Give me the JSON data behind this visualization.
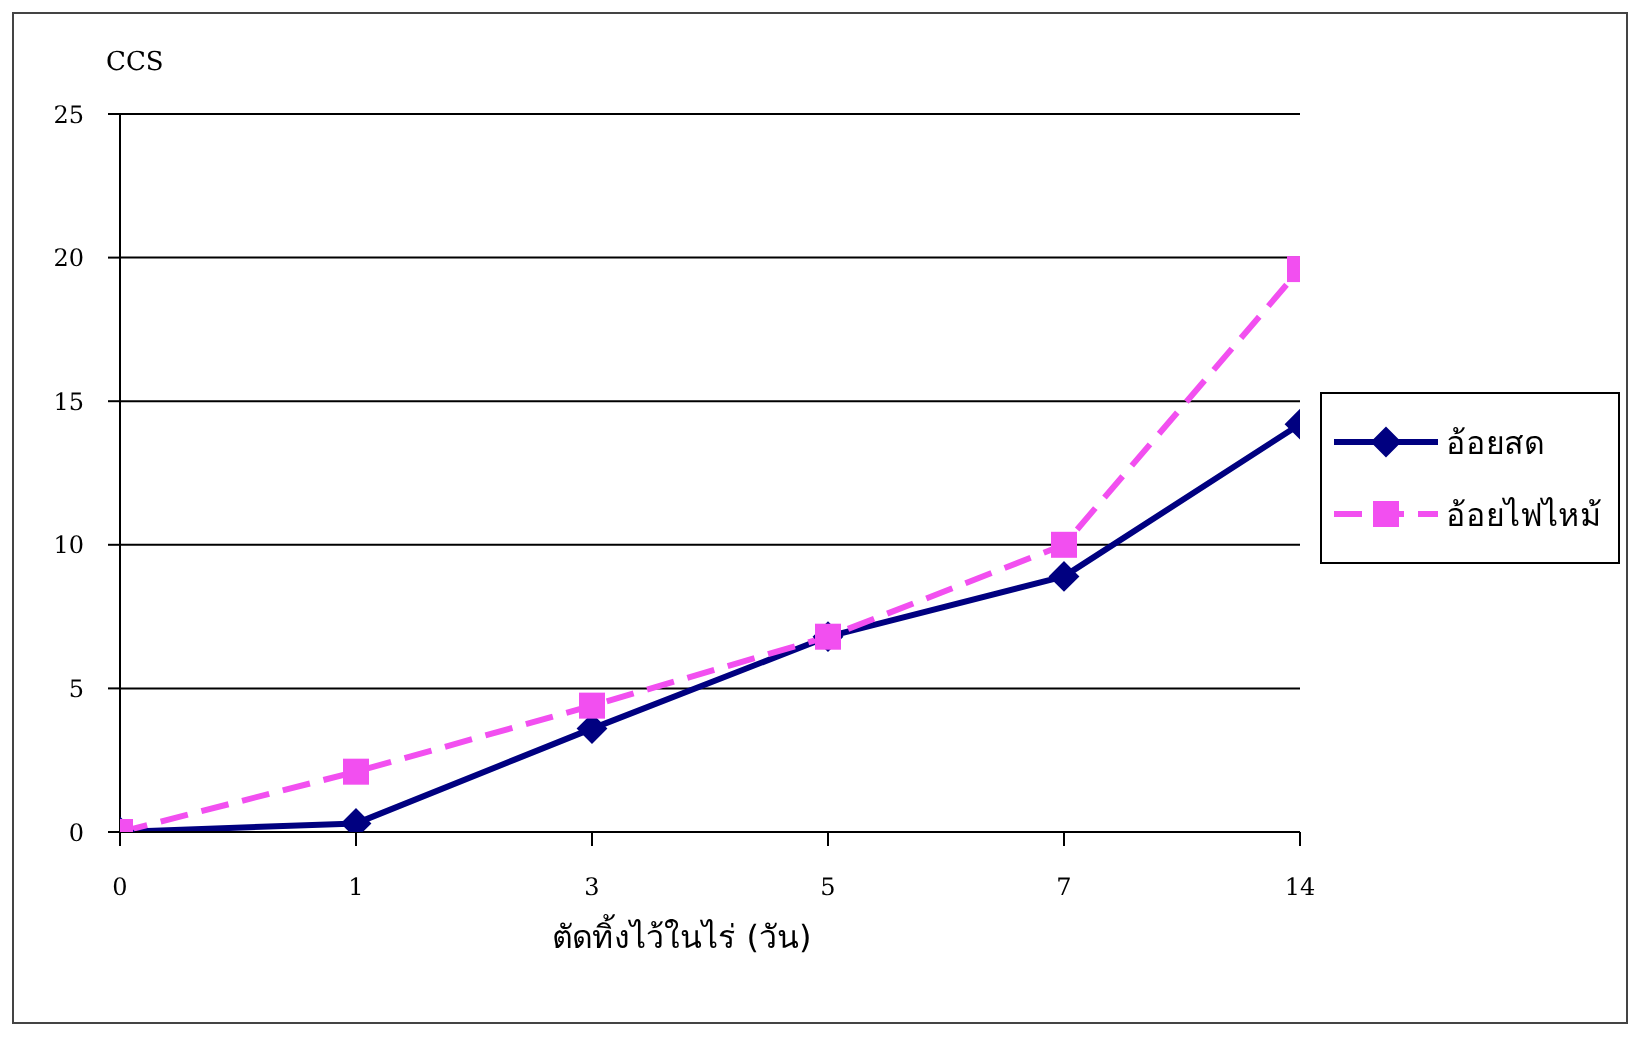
{
  "chart_data": {
    "type": "line",
    "xlabel": "ตัดทิ้งไว้ในไร่ (วัน)",
    "ylabel": "CCS",
    "categories": [
      "0",
      "1",
      "3",
      "5",
      "7",
      "14"
    ],
    "series": [
      {
        "name": "อ้อยสด",
        "color": "#000080",
        "values": [
          0,
          0.3,
          3.6,
          6.8,
          8.9,
          14.2
        ],
        "marker": "diamond",
        "line_style": "solid"
      },
      {
        "name": "อ้อยไฟไหม้",
        "color": "#f24ff0",
        "values": [
          0,
          2.1,
          4.4,
          6.8,
          10.0,
          19.6
        ],
        "marker": "square",
        "line_style": "dashed"
      }
    ],
    "ylim": [
      0,
      25
    ],
    "yticks": [
      0,
      5,
      10,
      15,
      20,
      25
    ],
    "grid": "y",
    "legend": "right"
  }
}
